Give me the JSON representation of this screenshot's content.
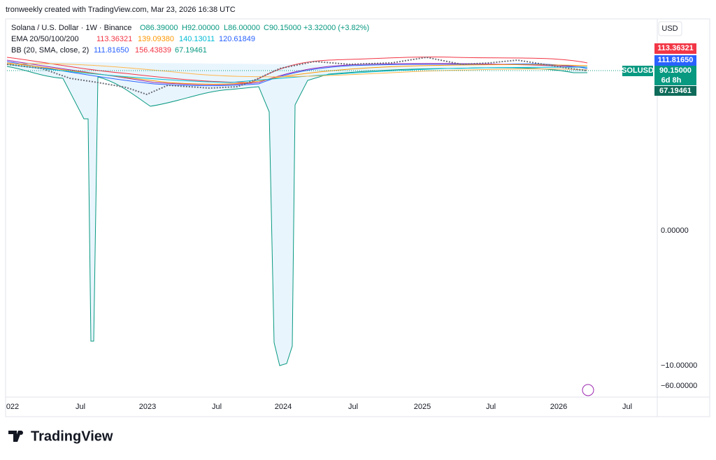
{
  "header": {
    "caption": "tronweekly created with TradingView.com, Mar 23, 2026 16:38 UTC"
  },
  "legend": {
    "symbol": "Solana / U.S. Dollar · 1W · Binance",
    "open": "O86.39000",
    "high": "H92.00000",
    "low": "L86.00000",
    "close": "C90.15000",
    "change": "+3.32000 (+3.82%)",
    "ema_name": "EMA 20/50/100/200",
    "ema_values": [
      "113.36321",
      "139.09380",
      "140.13011",
      "120.61849"
    ],
    "bb_name": "BB (20, SMA, close, 2)",
    "bb_values": [
      "111.81650",
      "156.43839",
      "67.19461"
    ]
  },
  "price_axis": {
    "currency": "USD",
    "labels": [
      "0.00000",
      "−10.00000",
      "−60.00000"
    ],
    "tags": {
      "ema": "113.36321",
      "bb_basis": "111.81650",
      "symbol": "SOLUSD",
      "last": "90.15000",
      "countdown": "6d 8h",
      "bb_lower": "67.19461"
    }
  },
  "time_axis": {
    "labels": [
      "022",
      "Jul",
      "2023",
      "Jul",
      "2024",
      "Jul",
      "2025",
      "Jul",
      "2026",
      "Jul"
    ]
  },
  "footer": {
    "brand": "TradingView"
  }
}
